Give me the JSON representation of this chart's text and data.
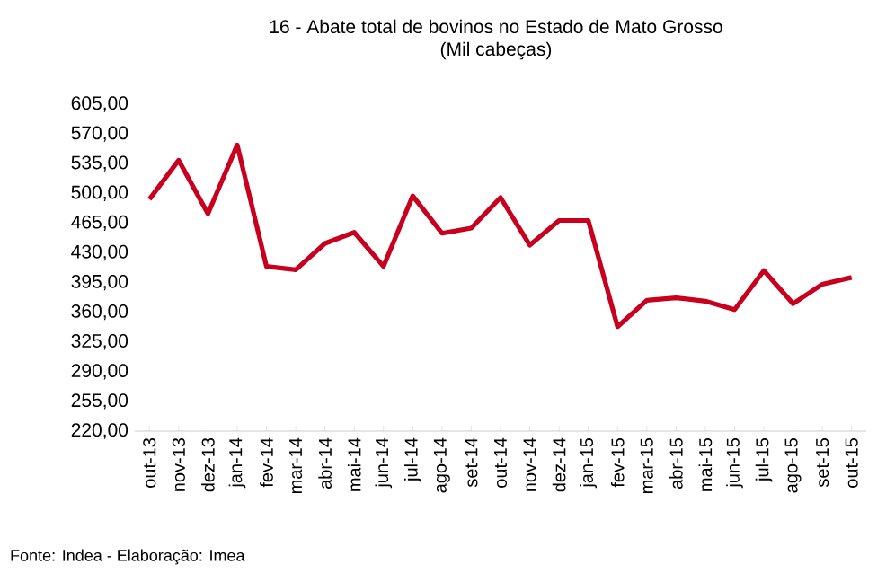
{
  "chart_data": {
    "type": "line",
    "title": "16 - Abate total de bovinos no Estado de Mato Grosso",
    "subtitle": "(Mil cabeças)",
    "categories": [
      "out-13",
      "nov-13",
      "dez-13",
      "jan-14",
      "fev-14",
      "mar-14",
      "abr-14",
      "mai-14",
      "jun-14",
      "jul-14",
      "ago-14",
      "set-14",
      "out-14",
      "nov-14",
      "dez-14",
      "jan-15",
      "fev-15",
      "mar-15",
      "abr-15",
      "mai-15",
      "jun-15",
      "jul-15",
      "ago-15",
      "set-15",
      "out-15"
    ],
    "values": [
      493,
      539,
      476,
      557,
      414,
      410,
      441,
      454,
      414,
      497,
      453,
      459,
      495,
      439,
      468,
      468,
      343,
      374,
      377,
      373,
      363,
      409,
      370,
      393,
      401
    ],
    "color": "#c8001e",
    "ylim": [
      220,
      605
    ],
    "yticks": [
      {
        "value": 220,
        "label": "220,00"
      },
      {
        "value": 255,
        "label": "255,00"
      },
      {
        "value": 290,
        "label": "290,00"
      },
      {
        "value": 325,
        "label": "325,00"
      },
      {
        "value": 360,
        "label": "360,00"
      },
      {
        "value": 395,
        "label": "395,00"
      },
      {
        "value": 430,
        "label": "430,00"
      },
      {
        "value": 465,
        "label": "465,00"
      },
      {
        "value": 500,
        "label": "500,00"
      },
      {
        "value": 535,
        "label": "535,00"
      },
      {
        "value": 570,
        "label": "570,00"
      },
      {
        "value": 605,
        "label": "605,00"
      }
    ],
    "grid": false,
    "marker": "none",
    "line_style": "solid",
    "annotations": [
      "Fonte: Indea - Elaboração: Imea"
    ]
  }
}
